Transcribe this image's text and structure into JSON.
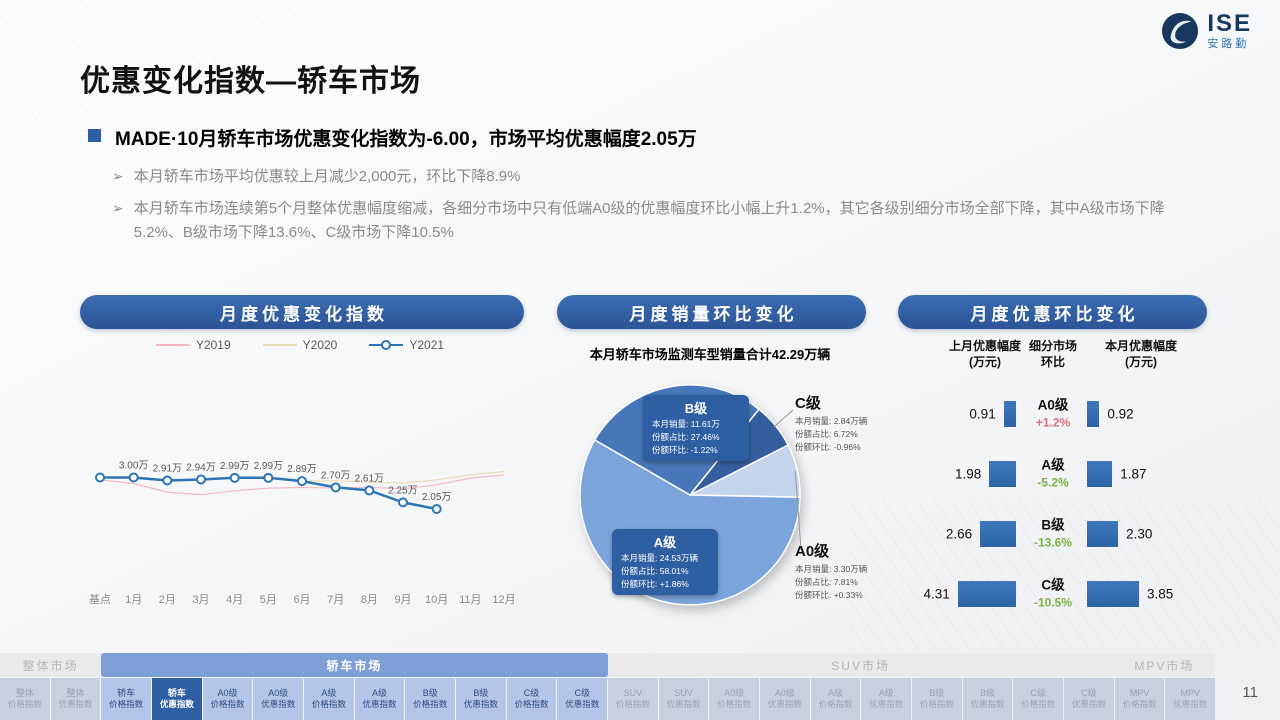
{
  "logo": {
    "brand": "ISE",
    "subtitle": "安路勤"
  },
  "title": "优惠变化指数—轿车市场",
  "summary": {
    "bullet_icon": "➢",
    "headline": "MADE·10月轿车市场优惠变化指数为-6.00，市场平均优惠幅度2.05万",
    "bullets": [
      "本月轿车市场平均优惠较上月减少2,000元，环比下降8.9%",
      "本月轿车市场连续第5个月整体优惠幅度缩减，各细分市场中只有低端A0级的优惠幅度环比小幅上升1.2%，其它各级别细分市场全部下降，其中A级市场下降5.2%、B级市场下降13.6%、C级市场下降10.5%"
    ]
  },
  "panels": {
    "line": {
      "header": "月度优惠变化指数"
    },
    "pie": {
      "header": "月度销量环比变化",
      "subtitle": "本月轿车市场监测车型销量合计42.29万辆"
    },
    "bars": {
      "header": "月度优惠环比变化",
      "columns": [
        {
          "line1": "上月优惠幅度",
          "line2": "(万元)"
        },
        {
          "line1": "细分市场",
          "line2": "环比"
        },
        {
          "line1": "本月优惠幅度",
          "line2": "(万元)"
        }
      ]
    }
  },
  "chart_data": [
    {
      "type": "line",
      "title": "月度优惠变化指数",
      "x": [
        "基点",
        "1月",
        "2月",
        "3月",
        "4月",
        "5月",
        "6月",
        "7月",
        "8月",
        "9月",
        "10月",
        "11月",
        "12月"
      ],
      "ylim": [
        0,
        6
      ],
      "unit": "万",
      "legend_position": "top",
      "grid": false,
      "series": [
        {
          "name": "Y2019",
          "color": "#F3B9C3",
          "width": 1.2,
          "markers": false,
          "values": [
            2.93,
            2.82,
            2.56,
            2.48,
            2.6,
            2.68,
            2.7,
            2.68,
            2.7,
            2.66,
            2.78,
            2.98,
            3.08
          ]
        },
        {
          "name": "Y2020",
          "color": "#E8DCB5",
          "width": 1.2,
          "markers": false,
          "values": [
            3.0,
            2.96,
            2.9,
            2.94,
            3.0,
            2.96,
            2.9,
            2.9,
            2.86,
            2.83,
            2.93,
            3.08,
            3.18
          ]
        },
        {
          "name": "Y2021",
          "color": "#2E75B6",
          "width": 2.5,
          "markers": true,
          "values": [
            3.0,
            3.0,
            2.91,
            2.94,
            2.99,
            2.99,
            2.89,
            2.7,
            2.61,
            2.25,
            2.05,
            null,
            null
          ],
          "labels": [
            "",
            "3.00万",
            "2.91万",
            "2.94万",
            "2.99万",
            "2.99万",
            "2.89万",
            "2.70万",
            "2.61万",
            "2.25万",
            "2.05万",
            "",
            ""
          ]
        }
      ]
    },
    {
      "type": "pie",
      "title": "本月轿车市场监测车型销量合计42.29万辆",
      "start_angle": -60,
      "detail_labels": [
        "本月销量:",
        "份额占比:",
        "份额环比:"
      ],
      "slices": [
        {
          "id": "b",
          "name": "B级",
          "value": 27.46,
          "sales": "11.61万",
          "share": "27.46%",
          "mom": "-1.22%",
          "color": "#4777B8",
          "label_style": "on-pie"
        },
        {
          "id": "c",
          "name": "C级",
          "value": 6.72,
          "sales": "2.84万辆",
          "share": "6.72%",
          "mom": "-0.96%",
          "color": "#355E9E",
          "label_style": "callout"
        },
        {
          "id": "a0",
          "name": "A0级",
          "value": 7.81,
          "sales": "3.30万辆",
          "share": "7.81%",
          "mom": "+0.33%",
          "color": "#C3D5ED",
          "label_style": "callout"
        },
        {
          "id": "a",
          "name": "A级",
          "value": 58.01,
          "sales": "24.53万辆",
          "share": "58.01%",
          "mom": "+1.86%",
          "color": "#7BA4DB",
          "label_style": "on-pie"
        }
      ]
    },
    {
      "type": "bar-compare",
      "title": "月度优惠环比变化",
      "unit": "万元",
      "positive_color": "#E06C80",
      "negative_color": "#7CB342",
      "rows": [
        {
          "id": "a0",
          "segment": "A0级",
          "mom": "+1.2%",
          "last": 0.91,
          "current": 0.92
        },
        {
          "id": "a",
          "segment": "A级",
          "mom": "-5.2%",
          "last": 1.98,
          "current": 1.87
        },
        {
          "id": "b",
          "segment": "B级",
          "mom": "-13.6%",
          "last": 2.66,
          "current": 2.3
        },
        {
          "id": "c",
          "segment": "C级",
          "mom": "-10.5%",
          "last": 4.31,
          "current": 3.85
        }
      ]
    }
  ],
  "footer": {
    "sections": [
      {
        "id": "overall",
        "label": "整体市场",
        "active": false
      },
      {
        "id": "sedan",
        "label": "轿车市场",
        "active": true
      },
      {
        "id": "suv",
        "label": "SUV市场",
        "active": false
      },
      {
        "id": "mpv",
        "label": "MPV市场",
        "active": false
      }
    ],
    "tabs": [
      {
        "l1": "整体",
        "l2": "价格指数",
        "section": 0,
        "active": false
      },
      {
        "l1": "整体",
        "l2": "优惠指数",
        "section": 0,
        "active": false
      },
      {
        "l1": "轿车",
        "l2": "价格指数",
        "section": 1,
        "active": false
      },
      {
        "l1": "轿车",
        "l2": "优惠指数",
        "section": 1,
        "active": true
      },
      {
        "l1": "A0级",
        "l2": "价格指数",
        "section": 1,
        "active": false
      },
      {
        "l1": "A0级",
        "l2": "优惠指数",
        "section": 1,
        "active": false
      },
      {
        "l1": "A级",
        "l2": "价格指数",
        "section": 1,
        "active": false
      },
      {
        "l1": "A级",
        "l2": "优惠指数",
        "section": 1,
        "active": false
      },
      {
        "l1": "B级",
        "l2": "价格指数",
        "section": 1,
        "active": false
      },
      {
        "l1": "B级",
        "l2": "优惠指数",
        "section": 1,
        "active": false
      },
      {
        "l1": "C级",
        "l2": "价格指数",
        "section": 1,
        "active": false
      },
      {
        "l1": "C级",
        "l2": "优惠指数",
        "section": 1,
        "active": false
      },
      {
        "l1": "SUV",
        "l2": "价格指数",
        "section": 2,
        "active": false
      },
      {
        "l1": "SUV",
        "l2": "优惠指数",
        "section": 2,
        "active": false
      },
      {
        "l1": "A0级",
        "l2": "价格指数",
        "section": 2,
        "active": false
      },
      {
        "l1": "A0级",
        "l2": "优惠指数",
        "section": 2,
        "active": false
      },
      {
        "l1": "A级",
        "l2": "价格指数",
        "section": 2,
        "active": false
      },
      {
        "l1": "A级",
        "l2": "优惠指数",
        "section": 2,
        "active": false
      },
      {
        "l1": "B级",
        "l2": "价格指数",
        "section": 2,
        "active": false
      },
      {
        "l1": "B级",
        "l2": "优惠指数",
        "section": 2,
        "active": false
      },
      {
        "l1": "C级",
        "l2": "价格指数",
        "section": 2,
        "active": false
      },
      {
        "l1": "C级",
        "l2": "优惠指数",
        "section": 2,
        "active": false
      },
      {
        "l1": "MPV",
        "l2": "价格指数",
        "section": 3,
        "active": false
      },
      {
        "l1": "MPV",
        "l2": "优惠指数",
        "section": 3,
        "active": false
      }
    ]
  },
  "page_number": "11"
}
